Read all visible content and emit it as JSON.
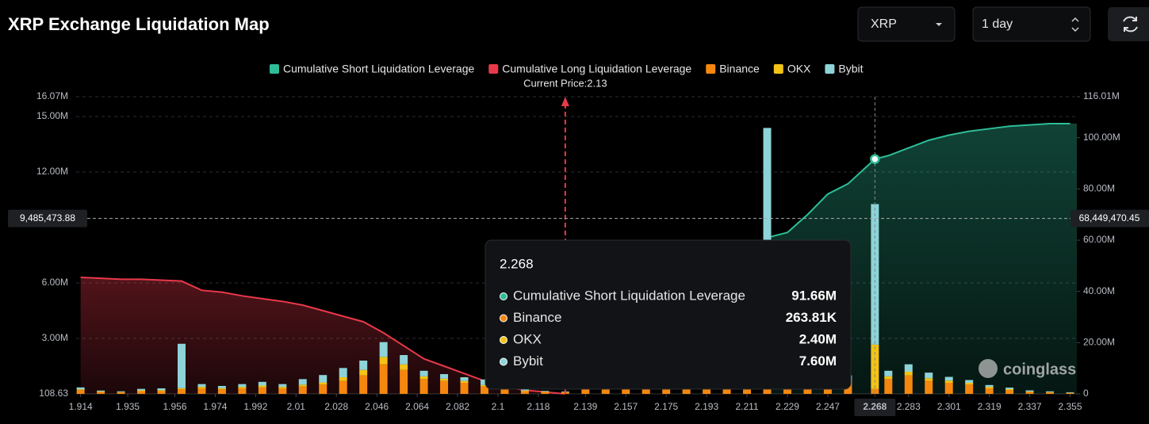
{
  "header": {
    "title": "XRP Exchange Liquidation Map",
    "symbol": "XRP",
    "period": "1 day"
  },
  "chart_data": {
    "type": "liquidation",
    "x": [
      1.914,
      1.923,
      1.932,
      1.941,
      1.95,
      1.959,
      1.968,
      1.977,
      1.986,
      1.995,
      2.004,
      2.013,
      2.022,
      2.031,
      2.04,
      2.049,
      2.058,
      2.067,
      2.076,
      2.085,
      2.094,
      2.103,
      2.112,
      2.121,
      2.13,
      2.139,
      2.148,
      2.157,
      2.166,
      2.175,
      2.184,
      2.193,
      2.202,
      2.211,
      2.22,
      2.229,
      2.238,
      2.247,
      2.256,
      2.268,
      2.274,
      2.283,
      2.292,
      2.301,
      2.31,
      2.319,
      2.328,
      2.337,
      2.346,
      2.355
    ],
    "xlim": [
      1.912,
      2.358
    ],
    "xticks": [
      1.914,
      1.935,
      1.956,
      1.974,
      1.992,
      2.01,
      2.028,
      2.046,
      2.064,
      2.082,
      2.1,
      2.118,
      2.139,
      2.157,
      2.175,
      2.193,
      2.211,
      2.229,
      2.247,
      2.268,
      2.283,
      2.301,
      2.319,
      2.337,
      2.355
    ],
    "ylim": [
      108.63,
      16070000
    ],
    "yticks": [
      108.63,
      {
        "value": 3000000,
        "label": "3.00M"
      },
      {
        "value": 6000000,
        "label": "6.00M"
      },
      {
        "value": 12000000,
        "label": "12.00M"
      },
      {
        "value": 15000000,
        "label": "15.00M"
      },
      {
        "value": 16070000,
        "label": "16.07M"
      }
    ],
    "y2lim": [
      0,
      116010000
    ],
    "y2ticks": [
      0,
      {
        "value": 20000000,
        "label": "20.00M"
      },
      {
        "value": 40000000,
        "label": "40.00M"
      },
      {
        "value": 60000000,
        "label": "60.00M"
      },
      {
        "value": 80000000,
        "label": "80.00M"
      },
      {
        "value": 100000000,
        "label": "100.00M"
      },
      {
        "value": 116010000,
        "label": "116.01M"
      }
    ],
    "grid": true,
    "series": [
      {
        "name": "Cumulative Short Liquidation Leverage",
        "color": "#2ebd98",
        "kind": "line",
        "axis": "y2",
        "values": [
          null,
          null,
          null,
          null,
          null,
          null,
          null,
          null,
          null,
          null,
          null,
          null,
          null,
          null,
          null,
          null,
          null,
          null,
          null,
          null,
          null,
          null,
          null,
          null,
          null,
          null,
          null,
          null,
          null,
          null,
          null,
          null,
          null,
          null,
          61000000,
          63000000,
          70000000,
          78000000,
          82000000,
          91660000,
          93000000,
          96000000,
          99000000,
          101000000,
          102500000,
          103500000,
          104500000,
          105000000,
          105500000,
          105500000
        ]
      },
      {
        "name": "Cumulative Long Liquidation Leverage",
        "color": "#e8394a",
        "kind": "line",
        "values": [
          6300000,
          6250000,
          6200000,
          6200000,
          6150000,
          6100000,
          5600000,
          5500000,
          5300000,
          5150000,
          5000000,
          4800000,
          4500000,
          4200000,
          3900000,
          3300000,
          2600000,
          1900000,
          1500000,
          1100000,
          700000,
          400000,
          200000,
          100000,
          0,
          null,
          null,
          null,
          null,
          null,
          null,
          null,
          null,
          null,
          null,
          null,
          null,
          null,
          null,
          null,
          null,
          null,
          null,
          null,
          null,
          null,
          null,
          null,
          null,
          null
        ]
      },
      {
        "name": "Binance",
        "color": "#f5870f",
        "kind": "bar",
        "values": [
          200000,
          100000,
          80000,
          150000,
          150000,
          250000,
          300000,
          250000,
          300000,
          350000,
          300000,
          400000,
          500000,
          700000,
          1000000,
          1600000,
          1300000,
          800000,
          700000,
          600000,
          400000,
          250000,
          150000,
          100000,
          80000,
          350000,
          350000,
          350000,
          350000,
          350000,
          350000,
          350000,
          350000,
          350000,
          350000,
          350000,
          400000,
          400000,
          600000,
          263810,
          800000,
          1000000,
          700000,
          600000,
          500000,
          300000,
          200000,
          100000,
          80000,
          50000
        ]
      },
      {
        "name": "OKX",
        "color": "#f3c316",
        "kind": "bar",
        "values": [
          50000,
          30000,
          20000,
          40000,
          50000,
          60000,
          80000,
          60000,
          80000,
          100000,
          80000,
          100000,
          120000,
          200000,
          300000,
          400000,
          300000,
          150000,
          120000,
          100000,
          80000,
          50000,
          30000,
          20000,
          20000,
          30000,
          30000,
          30000,
          30000,
          30000,
          30000,
          30000,
          30000,
          30000,
          30000,
          30000,
          50000,
          60000,
          100000,
          2400000,
          150000,
          200000,
          150000,
          120000,
          100000,
          80000,
          60000,
          30000,
          20000,
          10000
        ]
      },
      {
        "name": "Bybit",
        "color": "#8dd3d8",
        "kind": "bar",
        "values": [
          100000,
          50000,
          40000,
          80000,
          100000,
          2400000,
          150000,
          120000,
          150000,
          200000,
          150000,
          300000,
          400000,
          500000,
          500000,
          800000,
          500000,
          300000,
          250000,
          200000,
          300000,
          100000,
          60000,
          40000,
          30000,
          50000,
          50000,
          50000,
          50000,
          50000,
          50000,
          50000,
          50000,
          50000,
          14000000,
          50000,
          80000,
          100000,
          300000,
          7600000,
          300000,
          400000,
          300000,
          200000,
          150000,
          100000,
          80000,
          60000,
          40000,
          30000
        ]
      }
    ],
    "current_price": {
      "value": 2.13,
      "label": "Current Price:2.13"
    },
    "crosshair": {
      "x": 2.268,
      "left": {
        "value": 9485473.88,
        "label": "9,485,473.88"
      },
      "right": {
        "value": 68449470.45,
        "label": "68,449,470.45"
      }
    },
    "tooltip": {
      "title": "2.268",
      "rows": [
        {
          "name": "Cumulative Short Liquidation Leverage",
          "value": "91.66M"
        },
        {
          "name": "Binance",
          "value": "263.81K"
        },
        {
          "name": "OKX",
          "value": "2.40M"
        },
        {
          "name": "Bybit",
          "value": "7.60M"
        }
      ]
    },
    "watermark": "coinglass"
  }
}
